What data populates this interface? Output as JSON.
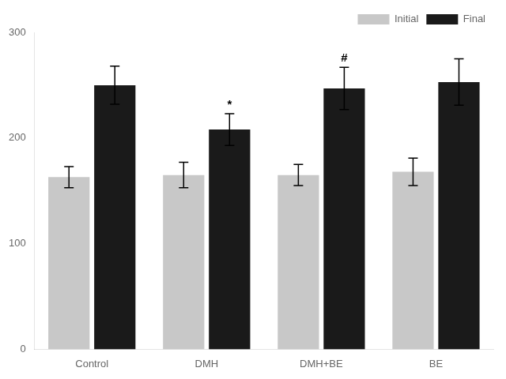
{
  "chart_data": {
    "type": "bar",
    "categories": [
      "Control",
      "DMH",
      "DMH+BE",
      "BE"
    ],
    "series": [
      {
        "name": "Initial",
        "color": "#c8c8c8",
        "values": [
          163,
          165,
          165,
          168
        ],
        "errors": [
          10,
          12,
          10,
          13
        ]
      },
      {
        "name": "Final",
        "color": "#1a1a1a",
        "values": [
          250,
          208,
          247,
          253
        ],
        "errors": [
          18,
          15,
          20,
          22
        ]
      }
    ],
    "annotations": [
      {
        "category": "DMH",
        "series": "Final",
        "text": "*"
      },
      {
        "category": "DMH+BE",
        "series": "Final",
        "text": "#"
      }
    ],
    "ylim": [
      0,
      300
    ],
    "yticks": [
      0,
      100,
      200,
      300
    ],
    "grid": false,
    "legend": "upper right"
  }
}
